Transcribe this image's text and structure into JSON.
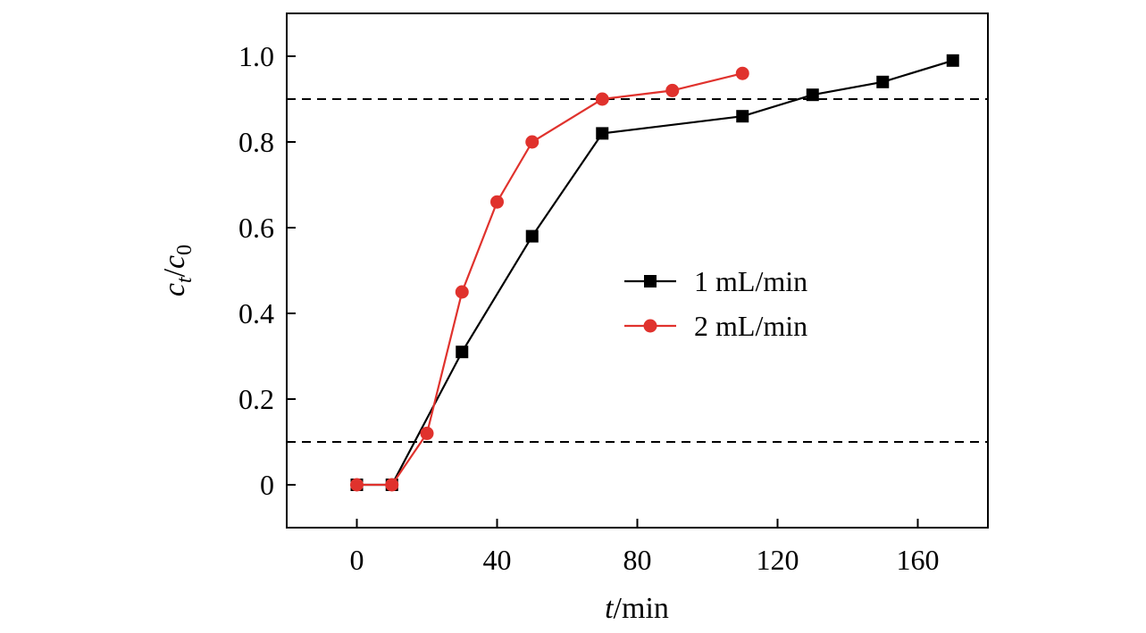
{
  "chart_data": {
    "type": "line",
    "xlabel": {
      "italic": "t",
      "rest": "/min"
    },
    "ylabel": {
      "c": "c",
      "sub_t": "t",
      "slash": "/",
      "sub_0": "0"
    },
    "xlim": [
      -20,
      180
    ],
    "ylim": [
      -0.1,
      1.1
    ],
    "xticks": [
      0,
      40,
      80,
      120,
      160
    ],
    "xtick_labels": [
      "0",
      "40",
      "80",
      "120",
      "160"
    ],
    "yticks": [
      0,
      0.2,
      0.4,
      0.6,
      0.8,
      1.0
    ],
    "ytick_labels": [
      "0",
      "0.2",
      "0.4",
      "0.6",
      "0.8",
      "1.0"
    ],
    "reference_lines": [
      0.1,
      0.9
    ],
    "grid": false,
    "legend_position": "center-right",
    "series": [
      {
        "name": "1 mL/min",
        "color": "#000000",
        "marker": "square",
        "x": [
          0,
          10,
          30,
          50,
          70,
          110,
          130,
          150,
          170
        ],
        "y": [
          0,
          0,
          0.31,
          0.58,
          0.82,
          0.86,
          0.91,
          0.94,
          0.99
        ]
      },
      {
        "name": "2 mL/min",
        "color": "#e0322d",
        "marker": "circle",
        "x": [
          0,
          10,
          20,
          30,
          40,
          50,
          70,
          90,
          110
        ],
        "y": [
          0,
          0,
          0.12,
          0.45,
          0.66,
          0.8,
          0.9,
          0.92,
          0.96
        ]
      }
    ]
  }
}
